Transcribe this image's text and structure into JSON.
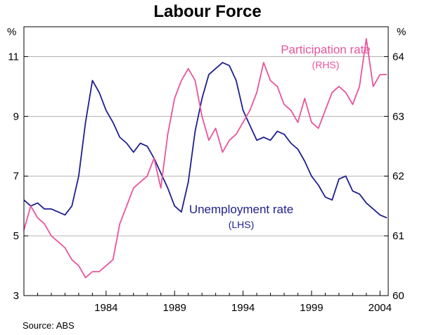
{
  "chart_data": {
    "type": "line",
    "title": "Labour Force",
    "source": "Source: ABS",
    "left_axis": {
      "unit": "%",
      "ylim": [
        3,
        12
      ],
      "ticks": [
        3,
        5,
        7,
        9,
        11
      ]
    },
    "right_axis": {
      "unit": "%",
      "ylim": [
        60,
        64.5
      ],
      "ticks": [
        60,
        61,
        62,
        63,
        64
      ]
    },
    "x_axis": {
      "xlim": [
        1978.0,
        2004.6
      ],
      "ticks": [
        1984,
        1989,
        1994,
        1999,
        2004
      ]
    },
    "series": [
      {
        "name": "Unemployment rate",
        "axis_label": "(LHS)",
        "axis": "left",
        "color": "#1f1f8f",
        "x": [
          1978.0,
          1978.5,
          1979.0,
          1979.5,
          1980.0,
          1980.5,
          1981.0,
          1981.5,
          1982.0,
          1982.5,
          1983.0,
          1983.5,
          1984.0,
          1984.5,
          1985.0,
          1985.5,
          1986.0,
          1986.5,
          1987.0,
          1987.5,
          1988.0,
          1988.5,
          1989.0,
          1989.5,
          1990.0,
          1990.5,
          1991.0,
          1991.5,
          1992.0,
          1992.5,
          1993.0,
          1993.5,
          1994.0,
          1994.5,
          1995.0,
          1995.5,
          1996.0,
          1996.5,
          1997.0,
          1997.5,
          1998.0,
          1998.5,
          1999.0,
          1999.5,
          2000.0,
          2000.5,
          2001.0,
          2001.5,
          2002.0,
          2002.5,
          2003.0,
          2003.5,
          2004.0,
          2004.5
        ],
        "values": [
          6.2,
          6.0,
          6.1,
          5.9,
          5.9,
          5.8,
          5.7,
          6.0,
          7.0,
          8.8,
          10.2,
          9.8,
          9.2,
          8.8,
          8.3,
          8.1,
          7.8,
          8.1,
          8.0,
          7.6,
          7.1,
          6.6,
          6.0,
          5.8,
          6.8,
          8.5,
          9.6,
          10.4,
          10.6,
          10.8,
          10.7,
          10.2,
          9.2,
          8.7,
          8.2,
          8.3,
          8.2,
          8.5,
          8.4,
          8.1,
          7.9,
          7.5,
          7.0,
          6.7,
          6.3,
          6.2,
          6.9,
          7.0,
          6.5,
          6.4,
          6.1,
          5.9,
          5.7,
          5.6
        ]
      },
      {
        "name": "Participation rate",
        "axis_label": "(RHS)",
        "axis": "right",
        "color": "#e8559c",
        "x": [
          1978.0,
          1978.5,
          1979.0,
          1979.5,
          1980.0,
          1980.5,
          1981.0,
          1981.5,
          1982.0,
          1982.5,
          1983.0,
          1983.5,
          1984.0,
          1984.5,
          1985.0,
          1985.5,
          1986.0,
          1986.5,
          1987.0,
          1987.5,
          1988.0,
          1988.5,
          1989.0,
          1989.5,
          1990.0,
          1990.5,
          1991.0,
          1991.5,
          1992.0,
          1992.5,
          1993.0,
          1993.5,
          1994.0,
          1994.5,
          1995.0,
          1995.5,
          1996.0,
          1996.5,
          1997.0,
          1997.5,
          1998.0,
          1998.5,
          1999.0,
          1999.5,
          2000.0,
          2000.5,
          2001.0,
          2001.5,
          2002.0,
          2002.5,
          2003.0,
          2003.5,
          2004.0,
          2004.5
        ],
        "values": [
          61.1,
          61.5,
          61.3,
          61.2,
          61.0,
          60.9,
          60.8,
          60.6,
          60.5,
          60.3,
          60.4,
          60.4,
          60.5,
          60.6,
          61.2,
          61.5,
          61.8,
          61.9,
          62.0,
          62.3,
          61.8,
          62.7,
          63.3,
          63.6,
          63.8,
          63.6,
          63.0,
          62.6,
          62.8,
          62.4,
          62.6,
          62.7,
          62.9,
          63.1,
          63.4,
          63.9,
          63.6,
          63.5,
          63.2,
          63.1,
          62.9,
          63.3,
          62.9,
          62.8,
          63.1,
          63.4,
          63.5,
          63.4,
          63.2,
          63.5,
          64.3,
          63.5,
          63.7,
          63.7
        ]
      }
    ],
    "annotations": {
      "participation": {
        "title": "Participation rate",
        "sub": "(RHS)"
      },
      "unemployment": {
        "title": "Unemployment rate",
        "sub": "(LHS)"
      }
    },
    "grid": true
  }
}
